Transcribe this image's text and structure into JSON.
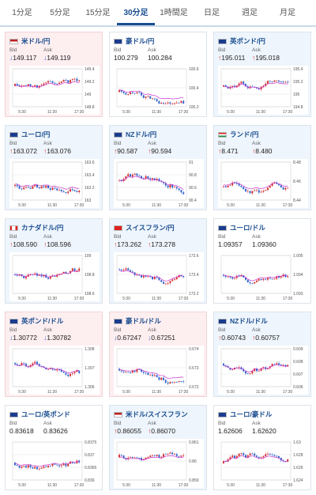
{
  "tabs": [
    {
      "label": "1分足",
      "active": false
    },
    {
      "label": "5分足",
      "active": false
    },
    {
      "label": "15分足",
      "active": false
    },
    {
      "label": "30分足",
      "active": true
    },
    {
      "label": "1時間足",
      "active": false
    },
    {
      "label": "日足",
      "active": false
    },
    {
      "label": "週足",
      "active": false
    },
    {
      "label": "月足",
      "active": false
    }
  ],
  "bid_label": "Bid",
  "ask_label": "Ask",
  "cards": [
    {
      "name": "米ドル/円",
      "flag": "us",
      "bid": "149.117",
      "ask": "149.119",
      "dir": "down",
      "tone": "neg",
      "ticks": [
        "149.4",
        "149.2",
        "149",
        "148.8"
      ],
      "xlabels": [
        "5:30",
        "11:30",
        "17:30"
      ]
    },
    {
      "name": "豪ドル/円",
      "flag": "au",
      "bid": "100.279",
      "ask": "100.284",
      "dir": "none",
      "tone": "neutral",
      "ticks": [
        "100.6",
        "100.4",
        "100.2"
      ],
      "xlabels": [
        "5:30",
        "11:30",
        "17:30"
      ]
    },
    {
      "name": "英ポンド/円",
      "flag": "uk",
      "bid": "195.011",
      "ask": "195.018",
      "dir": "up",
      "tone": "pos",
      "ticks": [
        "195.4",
        "195.2",
        "195",
        "194.8"
      ],
      "xlabels": [
        "5:30",
        "11:30",
        "17:30"
      ]
    },
    {
      "name": "ユーロ/円",
      "flag": "eu",
      "bid": "163.072",
      "ask": "163.076",
      "dir": "up",
      "tone": "pos",
      "ticks": [
        "163.6",
        "163.4",
        "163.2",
        "163"
      ],
      "xlabels": [
        "5:30",
        "11:30",
        "17:30"
      ]
    },
    {
      "name": "NZドル/円",
      "flag": "nz",
      "bid": "90.587",
      "ask": "90.594",
      "dir": "up",
      "tone": "pos",
      "ticks": [
        "91",
        "90.8",
        "90.6",
        "90.4"
      ],
      "xlabels": [
        "5:30",
        "11:30",
        "17:30"
      ]
    },
    {
      "name": "ランド/円",
      "flag": "za",
      "bid": "8.471",
      "ask": "8.480",
      "dir": "up",
      "tone": "pos",
      "ticks": [
        "8.48",
        "8.46",
        "8.44"
      ],
      "xlabels": [
        "5:30",
        "11:30",
        "17:30"
      ]
    },
    {
      "name": "カナダドル/円",
      "flag": "ca",
      "bid": "108.590",
      "ask": "108.596",
      "dir": "up",
      "tone": "pos",
      "ticks": [
        "109",
        "108.8",
        "108.6"
      ],
      "xlabels": [
        "5:30",
        "11:30",
        "17:30"
      ]
    },
    {
      "name": "スイスフラン/円",
      "flag": "ch",
      "bid": "173.262",
      "ask": "173.278",
      "dir": "up",
      "tone": "pos",
      "ticks": [
        "173.6",
        "173.4",
        "173.2"
      ],
      "xlabels": [
        "5:30",
        "11:30",
        "17:30"
      ]
    },
    {
      "name": "ユーロ/ドル",
      "flag": "eu",
      "bid": "1.09357",
      "ask": "1.09360",
      "dir": "none",
      "tone": "neutral",
      "ticks": [
        "1.095",
        "1.094",
        "1.093"
      ],
      "xlabels": [
        "5:30",
        "11:30",
        "17:30"
      ]
    },
    {
      "name": "英ポンド/ドル",
      "flag": "uk",
      "bid": "1.30772",
      "ask": "1.30782",
      "dir": "down",
      "tone": "neg",
      "ticks": [
        "1.308",
        "1.307",
        "1.306"
      ],
      "xlabels": [
        "5:30",
        "11:30",
        "17:30"
      ]
    },
    {
      "name": "豪ドル/ドル",
      "flag": "au",
      "bid": "0.67247",
      "ask": "0.67251",
      "dir": "down",
      "tone": "neg",
      "ticks": [
        "0.674",
        "0.673",
        "0.672"
      ],
      "xlabels": [
        "5:30",
        "11:30",
        "17:30"
      ]
    },
    {
      "name": "NZドル/ドル",
      "flag": "nz",
      "bid": "0.60743",
      "ask": "0.60757",
      "dir": "up",
      "tone": "pos",
      "ticks": [
        "0.609",
        "0.608",
        "0.607",
        "0.606"
      ],
      "xlabels": [
        "5:30",
        "11:30",
        "17:30"
      ]
    },
    {
      "name": "ユーロ/英ポンド",
      "flag": "eu",
      "bid": "0.83618",
      "ask": "0.83626",
      "dir": "none",
      "tone": "neutral",
      "ticks": [
        "0.8375",
        "0.837",
        "0.8365",
        "0.836"
      ],
      "xlabels": [
        "5:30",
        "11:30",
        "17:30"
      ]
    },
    {
      "name": "米ドル/スイスフラン",
      "flag": "us",
      "bid": "0.86055",
      "ask": "0.86070",
      "dir": "up",
      "tone": "pos",
      "ticks": [
        "0.861",
        "0.86",
        "0.859"
      ],
      "xlabels": [
        "5:30",
        "11:30",
        "17:30"
      ]
    },
    {
      "name": "ユーロ/豪ドル",
      "flag": "eu",
      "bid": "1.62606",
      "ask": "1.62620",
      "dir": "none",
      "tone": "neutral",
      "ticks": [
        "1.63",
        "1.628",
        "1.626",
        "1.624"
      ],
      "xlabels": [
        "5:30",
        "11:30",
        "17:30"
      ]
    }
  ],
  "colors": {
    "up": "#d33333",
    "down": "#3366cc",
    "ma": "#cc33cc",
    "grid": "#e4e4e4"
  }
}
